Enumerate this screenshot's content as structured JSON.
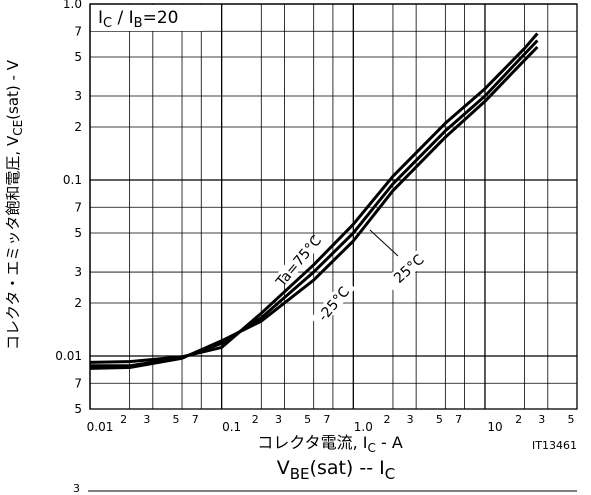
{
  "chart_data": {
    "type": "line",
    "inset_label": {
      "a": "I",
      "a_sub": "C",
      "b": " / I",
      "b_sub": "B",
      "c": "=20"
    },
    "x_label": {
      "a": "コレクタ電流, I",
      "a_sub": "C",
      "b": " - A"
    },
    "y_label": {
      "a": "コレクタ・エミッタ飽和電圧, V",
      "a_sub": "CE",
      "b": "(sat) - V"
    },
    "code": "IT13461",
    "log_x": true,
    "log_y": true,
    "grid": true,
    "x": [
      0.01,
      0.02,
      0.05,
      0.1,
      0.2,
      0.5,
      1,
      2,
      5,
      10,
      20,
      25
    ],
    "series": [
      {
        "name": "Ta=75°C",
        "color": "#000000",
        "values": [
          0.0092,
          0.0093,
          0.0099,
          0.0112,
          0.0175,
          0.033,
          0.056,
          0.105,
          0.21,
          0.33,
          0.56,
          0.68
        ]
      },
      {
        "name": "25°C",
        "color": "#000000",
        "values": [
          0.0088,
          0.0088,
          0.0098,
          0.0118,
          0.0165,
          0.03,
          0.05,
          0.095,
          0.19,
          0.3,
          0.52,
          0.62
        ]
      },
      {
        "name": "-25°C",
        "color": "#000000",
        "values": [
          0.0085,
          0.0086,
          0.0097,
          0.0122,
          0.0158,
          0.027,
          0.045,
          0.087,
          0.175,
          0.28,
          0.48,
          0.57
        ]
      }
    ],
    "xlim": [
      0.01,
      50
    ],
    "ylim": [
      0.005,
      1.0
    ],
    "xticks": [
      0.01,
      {
        "value": 0.02,
        "label": "2"
      },
      {
        "value": 0.03,
        "label": "3"
      },
      {
        "value": 0.05,
        "label": "5"
      },
      {
        "value": 0.07,
        "label": "7"
      },
      0.1,
      {
        "value": 0.2,
        "label": "2"
      },
      {
        "value": 0.3,
        "label": "3"
      },
      {
        "value": 0.5,
        "label": "5"
      },
      {
        "value": 0.7,
        "label": "7"
      },
      {
        "value": 1,
        "label": "1.0"
      },
      {
        "value": 2,
        "label": "2"
      },
      {
        "value": 3,
        "label": "3"
      },
      {
        "value": 5,
        "label": "5"
      },
      {
        "value": 7,
        "label": "7"
      },
      10,
      {
        "value": 20,
        "label": "2"
      },
      {
        "value": 30,
        "label": "3"
      },
      {
        "value": 50,
        "label": "5"
      }
    ],
    "yticks": [
      {
        "value": 1,
        "label": "1.0"
      },
      {
        "value": 0.7,
        "label": "7"
      },
      {
        "value": 0.5,
        "label": "5"
      },
      {
        "value": 0.3,
        "label": "3"
      },
      {
        "value": 0.2,
        "label": "2"
      },
      0.1,
      {
        "value": 0.07,
        "label": "7"
      },
      {
        "value": 0.05,
        "label": "5"
      },
      {
        "value": 0.03,
        "label": "3"
      },
      {
        "value": 0.02,
        "label": "2"
      },
      0.01,
      {
        "value": 0.007,
        "label": "7"
      },
      {
        "value": 0.005,
        "label": "5"
      }
    ]
  },
  "next_panel": {
    "title": {
      "a": "V",
      "a_sub": "BE",
      "b": "(sat)  --  I",
      "b_sub": "C"
    },
    "ytick": "3"
  }
}
